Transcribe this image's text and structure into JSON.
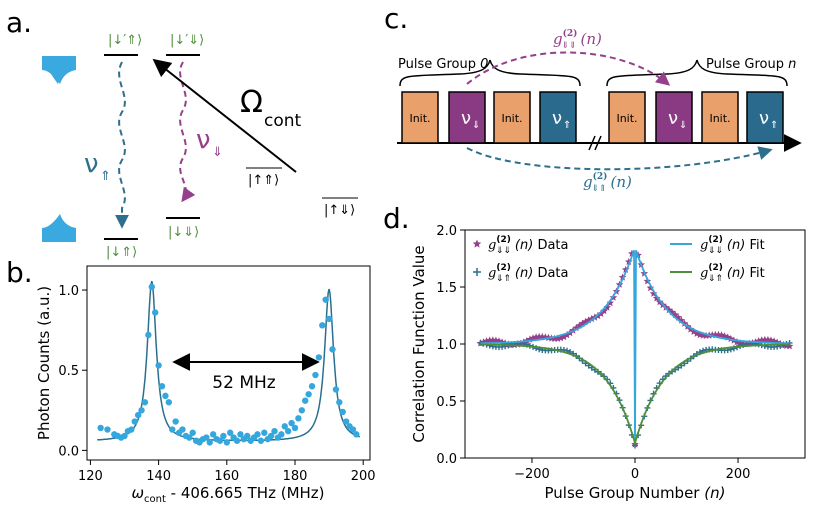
{
  "colors": {
    "purple": "#94408a",
    "teal": "#2f6f8e",
    "teal_fit": "#2a6f8f",
    "green": "#4e8f3a",
    "orange": "#e9a06a",
    "light_blue": "#35a7dd",
    "cavity": "#3aa9e0",
    "dark_purple_box": "#8a3a82",
    "dark_teal_box": "#2a6a8c"
  },
  "panels": {
    "a": {
      "label": "a.",
      "kets": {
        "top_left": "|↓′⇑⟩",
        "top_right": "|↓′⇓⟩",
        "bot_left": "|↓⇑⟩",
        "bot_right": "|↓⇓⟩",
        "mid1": "|↑⇑⟩",
        "mid2": "|↑⇓⟩"
      },
      "nu_up": "ν",
      "nu_up_sub": "⇑",
      "nu_down": "ν",
      "nu_down_sub": "⇓",
      "omega": "Ω",
      "omega_sub": "cont"
    },
    "b": {
      "label": "b.",
      "annotation": "52 MHz"
    },
    "c": {
      "label": "c.",
      "group0_label": "Pulse Group",
      "group0_index": "0",
      "groupn_label": "Pulse Group",
      "groupn_index": "n",
      "init_label": "Init.",
      "nu_down": "ν",
      "nu_down_sub": "⇓",
      "nu_up": "ν",
      "nu_up_sub": "⇑",
      "g_top": "g",
      "g_top_sup": "(2)",
      "g_top_sub": "⇓⇓",
      "g_top_arg": "(n)",
      "g_bot": "g",
      "g_bot_sup": "(2)",
      "g_bot_sub": "⇓⇑",
      "g_bot_arg": "(n)"
    },
    "d": {
      "label": "d."
    }
  },
  "chart_data": [
    {
      "type": "scatter",
      "panel": "b",
      "title": "",
      "xlabel": "ω",
      "xlabel_sub": "cont",
      "xlabel_rest": " - 406.665 THz (MHz)",
      "ylabel": "Photon Counts (a.u.)",
      "xlim": [
        119,
        202
      ],
      "ylim": [
        -0.06,
        1.15
      ],
      "xticks": [
        "120",
        "140",
        "160",
        "180",
        "200"
      ],
      "yticks": [
        "0.0",
        "0.5",
        "1.0"
      ],
      "series": [
        {
          "name": "Data",
          "kind": "points",
          "x": [
            123,
            125,
            127,
            128,
            129,
            130,
            131,
            132,
            133,
            134,
            135,
            136,
            137,
            138,
            139,
            140,
            141,
            142,
            143,
            144,
            145,
            146,
            147,
            148,
            149,
            150,
            151,
            152,
            153,
            154,
            155,
            156,
            157,
            158,
            159,
            160,
            161,
            162,
            163,
            164,
            165,
            166,
            167,
            168,
            169,
            170,
            171,
            172,
            173,
            174,
            175,
            176,
            177,
            178,
            179,
            180,
            181,
            182,
            183,
            184,
            185,
            186,
            187,
            188,
            189,
            190,
            191,
            192,
            193,
            194,
            195,
            196,
            197,
            198
          ],
          "y": [
            0.14,
            0.13,
            0.1,
            0.09,
            0.08,
            0.09,
            0.12,
            0.13,
            0.18,
            0.22,
            0.25,
            0.3,
            0.72,
            1.02,
            0.86,
            0.53,
            0.4,
            0.34,
            0.3,
            0.13,
            0.18,
            0.11,
            0.13,
            0.09,
            0.08,
            0.11,
            0.06,
            0.05,
            0.07,
            0.08,
            0.05,
            0.1,
            0.07,
            0.06,
            0.09,
            0.05,
            0.11,
            0.08,
            0.06,
            0.1,
            0.07,
            0.09,
            0.06,
            0.08,
            0.1,
            0.06,
            0.11,
            0.07,
            0.09,
            0.12,
            0.08,
            0.1,
            0.15,
            0.12,
            0.17,
            0.14,
            0.2,
            0.25,
            0.31,
            0.35,
            0.4,
            0.47,
            0.58,
            0.78,
            0.94,
            0.82,
            0.63,
            0.38,
            0.3,
            0.24,
            0.18,
            0.15,
            0.13,
            0.1
          ]
        },
        {
          "name": "Fit",
          "kind": "lorentzian",
          "centers": [
            138,
            190
          ],
          "amplitudes": [
            1.0,
            0.95
          ],
          "hwhm": [
            1.6,
            1.6
          ],
          "baseline": 0.055
        }
      ]
    },
    {
      "type": "scatter",
      "panel": "d",
      "xlabel": "Pulse Group Number",
      "xlabel_arg": "(n)",
      "ylabel": "Correlation Function Value",
      "xlim": [
        -330,
        330
      ],
      "ylim": [
        0.0,
        2.0
      ],
      "xticks": [
        "−200",
        "0",
        "200"
      ],
      "yticks": [
        "0.0",
        "0.5",
        "1.0",
        "1.5",
        "2.0"
      ],
      "legend": {
        "placement": "top",
        "entries": [
          {
            "g": "g",
            "sup": "(2)",
            "sub": "⇓⇓",
            "arg": "(n)",
            "text": " Data",
            "series": "dd_data"
          },
          {
            "g": "g",
            "sup": "(2)",
            "sub": "⇓⇑",
            "arg": "(n)",
            "text": " Data",
            "series": "du_data"
          },
          {
            "g": "g",
            "sup": "(2)",
            "sub": "⇓⇓",
            "arg": "(n)",
            "text": " Fit",
            "series": "dd_fit"
          },
          {
            "g": "g",
            "sup": "(2)",
            "sub": "⇓⇑",
            "arg": "(n)",
            "text": " Fit",
            "series": "du_fit"
          }
        ]
      },
      "series": [
        {
          "name": "dd_data",
          "kind": "star_points",
          "model": "1 + 0.85*exp(-|n|/60)",
          "n_range": [
            -300,
            300
          ],
          "step": 6
        },
        {
          "name": "du_data",
          "kind": "plus_points",
          "model": "1 - 0.87*exp(-|n|/55)",
          "n_range": [
            -300,
            300
          ],
          "step": 6
        },
        {
          "name": "dd_fit",
          "kind": "line",
          "model": "1 + 0.85*exp(-|n|/60), 0.12 at n=0"
        },
        {
          "name": "du_fit",
          "kind": "line",
          "model": "1 - 0.87*exp(-|n|/55)"
        }
      ]
    }
  ]
}
